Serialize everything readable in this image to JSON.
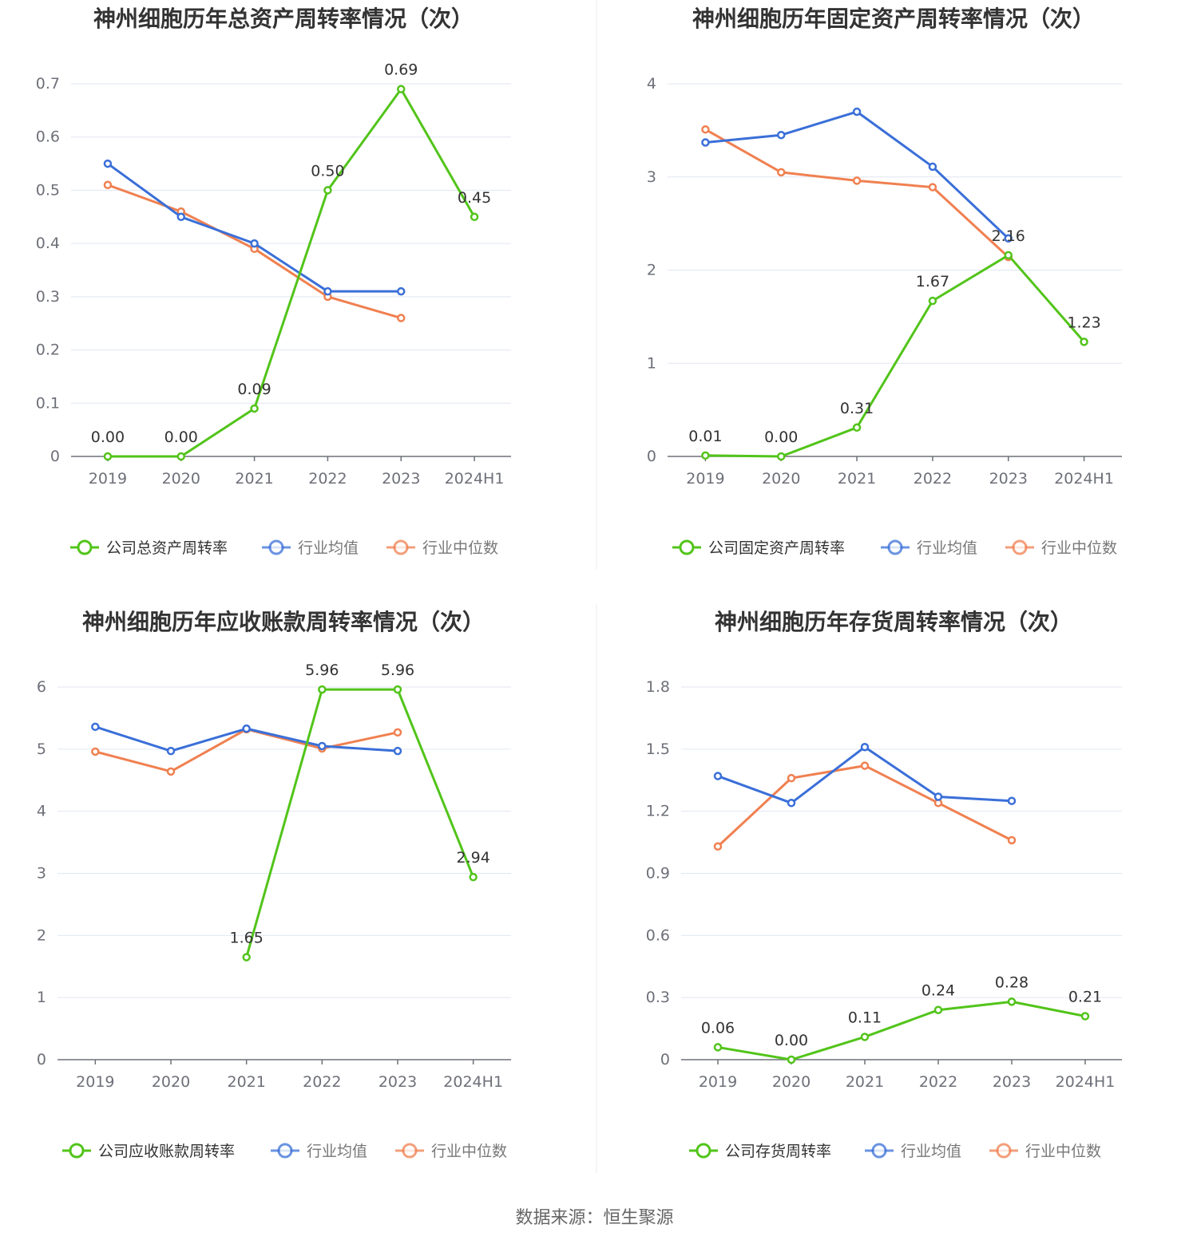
{
  "colors": {
    "company": "#52c41a",
    "industry_avg": "#3a6fd8",
    "industry_median": "#f08050",
    "grid": "#e0e6f1",
    "axis": "#6e7079"
  },
  "legend": {
    "industry_avg": "行业均值",
    "industry_median": "行业中位数"
  },
  "source": "数据来源：恒生聚源",
  "chart_data": [
    {
      "type": "line",
      "title": "神州细胞历年总资产周转率情况（次）",
      "categories": [
        "2019",
        "2020",
        "2021",
        "2022",
        "2023",
        "2024H1"
      ],
      "ylim": [
        0,
        0.7
      ],
      "yticks": [
        "0",
        "0.1",
        "0.2",
        "0.3",
        "0.4",
        "0.5",
        "0.6",
        "0.7"
      ],
      "grid": true,
      "legend_position": "bottom",
      "series": [
        {
          "name": "公司总资产周转率",
          "key": "company",
          "values": [
            0.0,
            0.0,
            0.09,
            0.5,
            0.69,
            0.45
          ],
          "labels": [
            "0.00",
            "0.00",
            "0.09",
            "0.50",
            "0.69",
            "0.45"
          ]
        },
        {
          "name": "行业均值",
          "key": "industry_avg",
          "values": [
            0.55,
            0.45,
            0.4,
            0.31,
            0.31,
            null
          ]
        },
        {
          "name": "行业中位数",
          "key": "industry_median",
          "values": [
            0.51,
            0.46,
            0.39,
            0.3,
            0.26,
            null
          ]
        }
      ]
    },
    {
      "type": "line",
      "title": "神州细胞历年固定资产周转率情况（次）",
      "categories": [
        "2019",
        "2020",
        "2021",
        "2022",
        "2023",
        "2024H1"
      ],
      "ylim": [
        0,
        4
      ],
      "yticks": [
        "0",
        "1",
        "2",
        "3",
        "4"
      ],
      "grid": true,
      "legend_position": "bottom",
      "series": [
        {
          "name": "公司固定资产周转率",
          "key": "company",
          "values": [
            0.01,
            0.0,
            0.31,
            1.67,
            2.16,
            1.23
          ],
          "labels": [
            "0.01",
            "0.00",
            "0.31",
            "1.67",
            "2.16",
            "1.23"
          ]
        },
        {
          "name": "行业均值",
          "key": "industry_avg",
          "values": [
            3.37,
            3.45,
            3.7,
            3.11,
            2.34,
            null
          ]
        },
        {
          "name": "行业中位数",
          "key": "industry_median",
          "values": [
            3.51,
            3.05,
            2.96,
            2.89,
            2.14,
            null
          ]
        }
      ]
    },
    {
      "type": "line",
      "title": "神州细胞历年应收账款周转率情况（次）",
      "categories": [
        "2019",
        "2020",
        "2021",
        "2022",
        "2023",
        "2024H1"
      ],
      "ylim": [
        0,
        6
      ],
      "yticks": [
        "0",
        "1",
        "2",
        "3",
        "4",
        "5",
        "6"
      ],
      "grid": true,
      "legend_position": "bottom",
      "series": [
        {
          "name": "公司应收账款周转率",
          "key": "company",
          "values": [
            null,
            null,
            1.65,
            5.96,
            5.96,
            2.94
          ],
          "labels": [
            "",
            "",
            "1.65",
            "5.96",
            "5.96",
            "2.94"
          ]
        },
        {
          "name": "行业均值",
          "key": "industry_avg",
          "values": [
            5.36,
            4.97,
            5.33,
            5.05,
            4.97,
            null
          ]
        },
        {
          "name": "行业中位数",
          "key": "industry_median",
          "values": [
            4.96,
            4.64,
            5.32,
            5.01,
            5.27,
            null
          ]
        }
      ]
    },
    {
      "type": "line",
      "title": "神州细胞历年存货周转率情况（次）",
      "categories": [
        "2019",
        "2020",
        "2021",
        "2022",
        "2023",
        "2024H1"
      ],
      "ylim": [
        0,
        1.8
      ],
      "yticks": [
        "0",
        "0.3",
        "0.6",
        "0.9",
        "1.2",
        "1.5",
        "1.8"
      ],
      "grid": true,
      "legend_position": "bottom",
      "series": [
        {
          "name": "公司存货周转率",
          "key": "company",
          "values": [
            0.06,
            0.0,
            0.11,
            0.24,
            0.28,
            0.21
          ],
          "labels": [
            "0.06",
            "0.00",
            "0.11",
            "0.24",
            "0.28",
            "0.21"
          ]
        },
        {
          "name": "行业均值",
          "key": "industry_avg",
          "values": [
            1.37,
            1.24,
            1.51,
            1.27,
            1.25,
            null
          ]
        },
        {
          "name": "行业中位数",
          "key": "industry_median",
          "values": [
            1.03,
            1.36,
            1.42,
            1.24,
            1.06,
            null
          ]
        }
      ]
    }
  ]
}
